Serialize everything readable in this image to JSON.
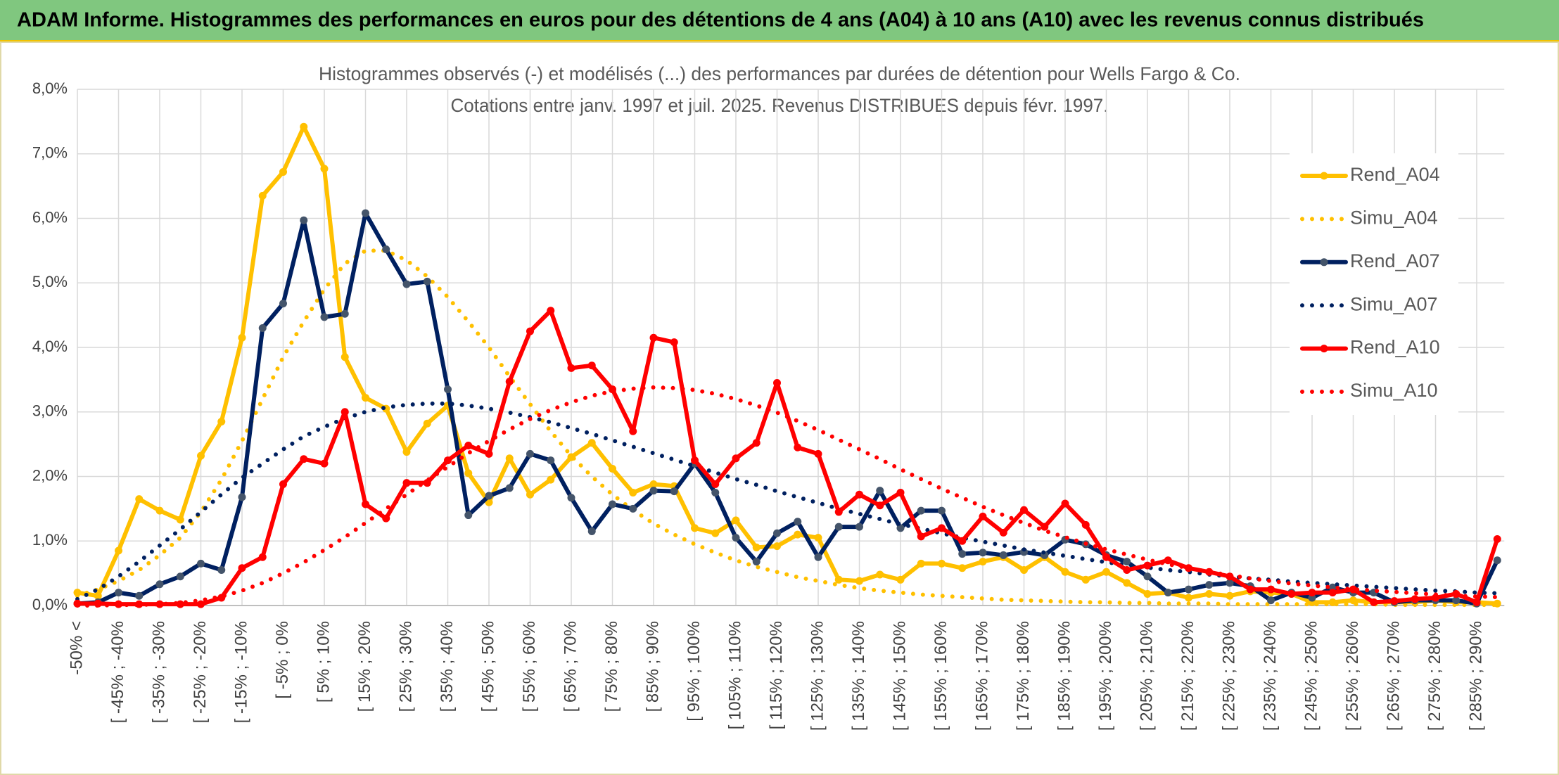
{
  "header": {
    "title": "ADAM Informe. Histogrammes des performances en euros pour des détentions de 4 ans (A04) à 10 ans (A10) avec les revenus connus distribués"
  },
  "chart_data": {
    "type": "line",
    "title": "Histogrammes observés (-) et modélisés (...) des performances par durées de détention pour Wells Fargo & Co.",
    "subtitle": "Cotations entre janv. 1997 et juil. 2025. Revenus DISTRIBUES depuis févr. 1997.",
    "categories": [
      "-50% <",
      null,
      "[ -45% ; -40%",
      null,
      "[ -35% ; -30%",
      null,
      "[ -25% ; -20%",
      null,
      "[ -15% ; -10%",
      null,
      "[ -5% ; 0%",
      null,
      "[ 5% ; 10%",
      null,
      "[ 15% ; 20%",
      null,
      "[ 25% ; 30%",
      null,
      "[ 35% ; 40%",
      null,
      "[ 45% ; 50%",
      null,
      "[ 55% ; 60%",
      null,
      "[ 65% ; 70%",
      null,
      "[ 75% ; 80%",
      null,
      "[ 85% ; 90%",
      null,
      "[ 95% ; 100%",
      null,
      "[ 105% ; 110%",
      null,
      "[ 115% ; 120%",
      null,
      "[ 125% ; 130%",
      null,
      "[ 135% ; 140%",
      null,
      "[ 145% ; 150%",
      null,
      "[ 155% ; 160%",
      null,
      "[ 165% ; 170%",
      null,
      "[ 175% ; 180%",
      null,
      "[ 185% ; 190%",
      null,
      "[ 195% ; 200%",
      null,
      "[ 205% ; 210%",
      null,
      "[ 215% ; 220%",
      null,
      "[ 225% ; 230%",
      null,
      "[ 235% ; 240%",
      null,
      "[ 245% ; 250%",
      null,
      "[ 255% ; 260%",
      null,
      "[ 265% ; 270%",
      null,
      "[ 275% ; 280%",
      null,
      "[ 285% ; 290%",
      null
    ],
    "series": [
      {
        "name": "Rend_A04",
        "color": "#ffc000",
        "dotted": false,
        "markers": true,
        "values": [
          0.2,
          0.15,
          0.85,
          1.65,
          1.47,
          1.33,
          2.32,
          2.85,
          4.15,
          6.35,
          6.72,
          7.42,
          6.77,
          3.85,
          3.22,
          3.05,
          2.38,
          2.82,
          3.1,
          2.05,
          1.6,
          2.28,
          1.72,
          1.95,
          2.3,
          2.52,
          2.12,
          1.75,
          1.88,
          1.85,
          1.2,
          1.12,
          1.32,
          0.9,
          0.92,
          1.1,
          1.05,
          0.4,
          0.38,
          0.48,
          0.4,
          0.65,
          0.65,
          0.58,
          0.68,
          0.75,
          0.55,
          0.75,
          0.52,
          0.4,
          0.52,
          0.35,
          0.18,
          0.2,
          0.12,
          0.18,
          0.15,
          0.22,
          0.2,
          0.18,
          0.05,
          0.05,
          0.08,
          0.05,
          0.05,
          0.05,
          0.08,
          0.05,
          0.05,
          0.03
        ]
      },
      {
        "name": "Simu_A04",
        "color": "#ffc000",
        "dotted": true,
        "markers": false,
        "values": [
          0.15,
          0.25,
          0.38,
          0.55,
          0.78,
          1.05,
          1.45,
          1.95,
          2.55,
          3.2,
          3.85,
          4.4,
          4.9,
          5.3,
          5.5,
          5.5,
          5.35,
          5.1,
          4.78,
          4.4,
          4.0,
          3.55,
          3.12,
          2.7,
          2.32,
          2.0,
          1.72,
          1.48,
          1.27,
          1.1,
          0.95,
          0.82,
          0.7,
          0.6,
          0.52,
          0.44,
          0.38,
          0.32,
          0.27,
          0.23,
          0.2,
          0.17,
          0.15,
          0.13,
          0.11,
          0.09,
          0.08,
          0.07,
          0.06,
          0.05,
          0.05,
          0.04,
          0.04,
          0.03,
          0.03,
          0.03,
          0.02,
          0.02,
          0.02,
          0.02,
          0.02,
          0.02,
          0.02,
          0.02,
          0.01,
          0.01,
          0.01,
          0.01,
          0.01,
          0.01
        ]
      },
      {
        "name": "Rend_A07",
        "color": "#002060",
        "dotted": false,
        "markers": true,
        "values": [
          0.03,
          0.05,
          0.2,
          0.15,
          0.33,
          0.45,
          0.65,
          0.55,
          1.68,
          4.3,
          4.68,
          5.97,
          4.47,
          4.52,
          6.08,
          5.52,
          4.98,
          5.02,
          3.35,
          1.4,
          1.7,
          1.82,
          2.35,
          2.25,
          1.67,
          1.15,
          1.57,
          1.5,
          1.78,
          1.77,
          2.2,
          1.75,
          1.05,
          0.68,
          1.12,
          1.3,
          0.75,
          1.22,
          1.22,
          1.78,
          1.2,
          1.47,
          1.47,
          0.8,
          0.82,
          0.78,
          0.83,
          0.78,
          1.02,
          0.95,
          0.78,
          0.68,
          0.45,
          0.2,
          0.25,
          0.32,
          0.35,
          0.3,
          0.08,
          0.2,
          0.12,
          0.28,
          0.2,
          0.2,
          0.05,
          0.08,
          0.08,
          0.08,
          0.03,
          0.7
        ]
      },
      {
        "name": "Simu_A07",
        "color": "#002060",
        "dotted": true,
        "markers": false,
        "values": [
          0.1,
          0.25,
          0.45,
          0.68,
          0.93,
          1.18,
          1.45,
          1.72,
          1.98,
          2.2,
          2.42,
          2.62,
          2.77,
          2.9,
          3.0,
          3.07,
          3.11,
          3.13,
          3.13,
          3.1,
          3.05,
          2.99,
          2.92,
          2.84,
          2.75,
          2.66,
          2.56,
          2.46,
          2.36,
          2.26,
          2.16,
          2.06,
          1.96,
          1.87,
          1.77,
          1.68,
          1.59,
          1.5,
          1.42,
          1.34,
          1.26,
          1.19,
          1.12,
          1.05,
          0.99,
          0.93,
          0.87,
          0.82,
          0.77,
          0.72,
          0.67,
          0.63,
          0.59,
          0.55,
          0.52,
          0.48,
          0.45,
          0.42,
          0.4,
          0.37,
          0.35,
          0.33,
          0.31,
          0.29,
          0.27,
          0.25,
          0.23,
          0.22,
          0.2,
          0.19
        ]
      },
      {
        "name": "Rend_A10",
        "color": "#ff0000",
        "dotted": false,
        "markers": true,
        "values": [
          0.03,
          0.03,
          0.02,
          0.02,
          0.02,
          0.02,
          0.02,
          0.12,
          0.58,
          0.75,
          1.88,
          2.27,
          2.2,
          3.0,
          1.57,
          1.35,
          1.9,
          1.9,
          2.25,
          2.48,
          2.35,
          3.47,
          4.25,
          4.57,
          3.68,
          3.72,
          3.35,
          2.7,
          4.15,
          4.08,
          2.25,
          1.88,
          2.28,
          2.52,
          3.45,
          2.45,
          2.35,
          1.45,
          1.72,
          1.55,
          1.75,
          1.07,
          1.2,
          1.0,
          1.38,
          1.13,
          1.48,
          1.22,
          1.58,
          1.25,
          0.75,
          0.55,
          0.62,
          0.7,
          0.58,
          0.52,
          0.45,
          0.25,
          0.25,
          0.18,
          0.2,
          0.2,
          0.25,
          0.05,
          0.07,
          0.1,
          0.12,
          0.18,
          0.05,
          1.03
        ]
      },
      {
        "name": "Simu_A10",
        "color": "#ff0000",
        "dotted": true,
        "markers": false,
        "values": [
          0,
          0,
          0.01,
          0.01,
          0.02,
          0.04,
          0.08,
          0.14,
          0.23,
          0.35,
          0.5,
          0.67,
          0.86,
          1.06,
          1.28,
          1.5,
          1.72,
          1.94,
          2.15,
          2.36,
          2.55,
          2.73,
          2.89,
          3.03,
          3.15,
          3.25,
          3.32,
          3.36,
          3.38,
          3.37,
          3.34,
          3.28,
          3.2,
          3.1,
          2.99,
          2.86,
          2.72,
          2.57,
          2.42,
          2.27,
          2.11,
          1.96,
          1.81,
          1.67,
          1.53,
          1.4,
          1.28,
          1.16,
          1.06,
          0.96,
          0.87,
          0.79,
          0.71,
          0.64,
          0.58,
          0.52,
          0.47,
          0.42,
          0.38,
          0.34,
          0.31,
          0.28,
          0.25,
          0.23,
          0.21,
          0.19,
          0.17,
          0.15,
          0.14,
          0.13
        ]
      }
    ],
    "ylim": [
      0,
      8
    ],
    "yticks": [
      {
        "value": 0,
        "label": "0,0%"
      },
      {
        "value": 1,
        "label": "1,0%"
      },
      {
        "value": 2,
        "label": "2,0%"
      },
      {
        "value": 3,
        "label": "3,0%"
      },
      {
        "value": 4,
        "label": "4,0%"
      },
      {
        "value": 5,
        "label": "5,0%"
      },
      {
        "value": 6,
        "label": "6,0%"
      },
      {
        "value": 7,
        "label": "7,0%"
      },
      {
        "value": 8,
        "label": "8,0%"
      }
    ],
    "grid": true,
    "legend": "right"
  }
}
